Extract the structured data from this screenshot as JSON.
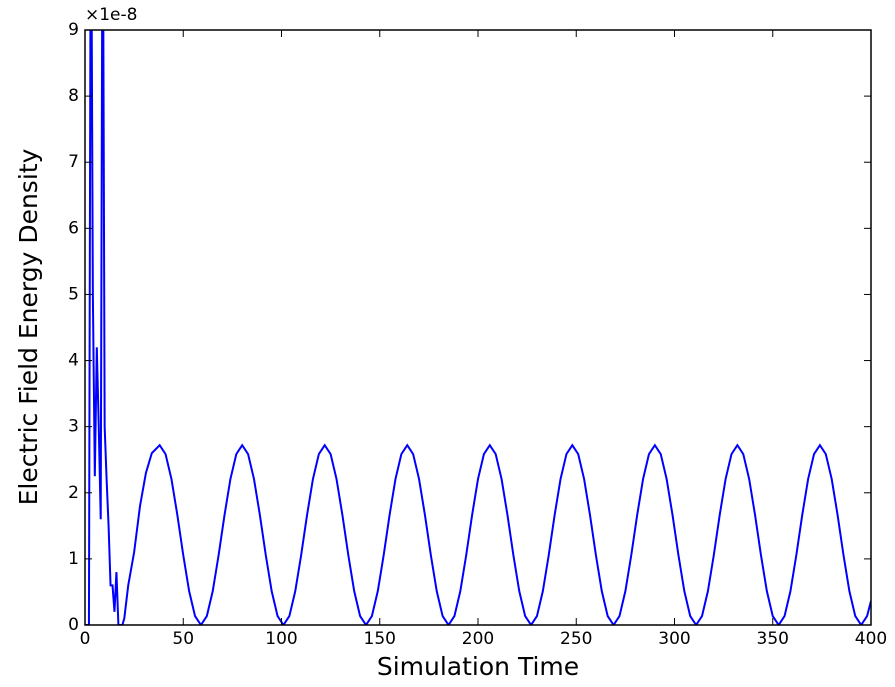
{
  "chart_data": {
    "type": "line",
    "xlabel": "Simulation Time",
    "ylabel": "Electric Field Energy Density",
    "y_offset_label": "×1e-8",
    "xlim": [
      0,
      400
    ],
    "xticks": [
      0,
      50,
      100,
      150,
      200,
      250,
      300,
      350,
      400
    ],
    "ylim": [
      0,
      9
    ],
    "yticks": [
      0,
      1,
      2,
      3,
      4,
      5,
      6,
      7,
      8,
      9
    ],
    "series": [
      {
        "color": "#0000ff",
        "x": [
          0,
          2,
          3,
          4,
          5,
          6,
          7,
          8,
          9,
          10,
          11,
          12,
          13,
          14,
          15,
          16,
          17,
          19,
          20,
          22,
          25,
          28,
          31,
          34,
          38,
          41,
          44,
          47,
          50,
          53,
          56,
          59,
          62,
          65,
          68,
          71,
          74,
          77,
          80,
          83,
          86,
          89,
          92,
          95,
          98,
          101,
          104,
          107,
          110,
          113,
          116,
          119,
          122,
          125,
          128,
          131,
          134,
          137,
          140,
          143,
          146,
          149,
          152,
          155,
          158,
          161,
          164,
          167,
          170,
          173,
          176,
          179,
          182,
          185,
          188,
          191,
          194,
          197,
          200,
          203,
          206,
          209,
          212,
          215,
          218,
          221,
          224,
          227,
          230,
          233,
          236,
          239,
          242,
          245,
          248,
          251,
          254,
          257,
          260,
          263,
          266,
          269,
          272,
          275,
          278,
          281,
          284,
          287,
          290,
          293,
          296,
          299,
          302,
          305,
          308,
          311,
          314,
          317,
          320,
          323,
          326,
          329,
          332,
          335,
          338,
          341,
          344,
          347,
          350,
          353,
          356,
          359,
          362,
          365,
          368,
          371,
          374,
          377,
          380,
          383,
          386,
          389,
          392,
          395,
          398,
          400
        ],
        "values": [
          0,
          0,
          12,
          5,
          2.25,
          4.2,
          3,
          1.6,
          12,
          3,
          2.2,
          1.5,
          0.6,
          0.6,
          0.2,
          0.8,
          0,
          0,
          0.1,
          0.6,
          1.1,
          1.8,
          2.3,
          2.6,
          2.72,
          2.585,
          2.208,
          1.663,
          1.057,
          0.512,
          0.135,
          0,
          0.135,
          0.512,
          1.057,
          1.663,
          2.208,
          2.585,
          2.72,
          2.585,
          2.208,
          1.663,
          1.057,
          0.512,
          0.135,
          0,
          0.135,
          0.512,
          1.057,
          1.663,
          2.208,
          2.585,
          2.72,
          2.585,
          2.208,
          1.663,
          1.057,
          0.512,
          0.135,
          0,
          0.135,
          0.512,
          1.057,
          1.663,
          2.208,
          2.585,
          2.72,
          2.585,
          2.208,
          1.663,
          1.057,
          0.512,
          0.135,
          0,
          0.135,
          0.512,
          1.057,
          1.663,
          2.208,
          2.585,
          2.72,
          2.585,
          2.208,
          1.663,
          1.057,
          0.512,
          0.135,
          0,
          0.135,
          0.512,
          1.057,
          1.663,
          2.208,
          2.585,
          2.72,
          2.585,
          2.208,
          1.663,
          1.057,
          0.512,
          0.135,
          0,
          0.135,
          0.512,
          1.057,
          1.663,
          2.208,
          2.585,
          2.72,
          2.585,
          2.208,
          1.663,
          1.057,
          0.512,
          0.135,
          0,
          0.135,
          0.512,
          1.057,
          1.663,
          2.208,
          2.585,
          2.72,
          2.585,
          2.208,
          1.663,
          1.057,
          0.512,
          0.135,
          0,
          0.135,
          0.512,
          1.057,
          1.663,
          2.208,
          2.585,
          2.72,
          2.585,
          2.208,
          1.663,
          1.057,
          0.512,
          0.135,
          0,
          0.135,
          0.363
        ]
      }
    ]
  }
}
